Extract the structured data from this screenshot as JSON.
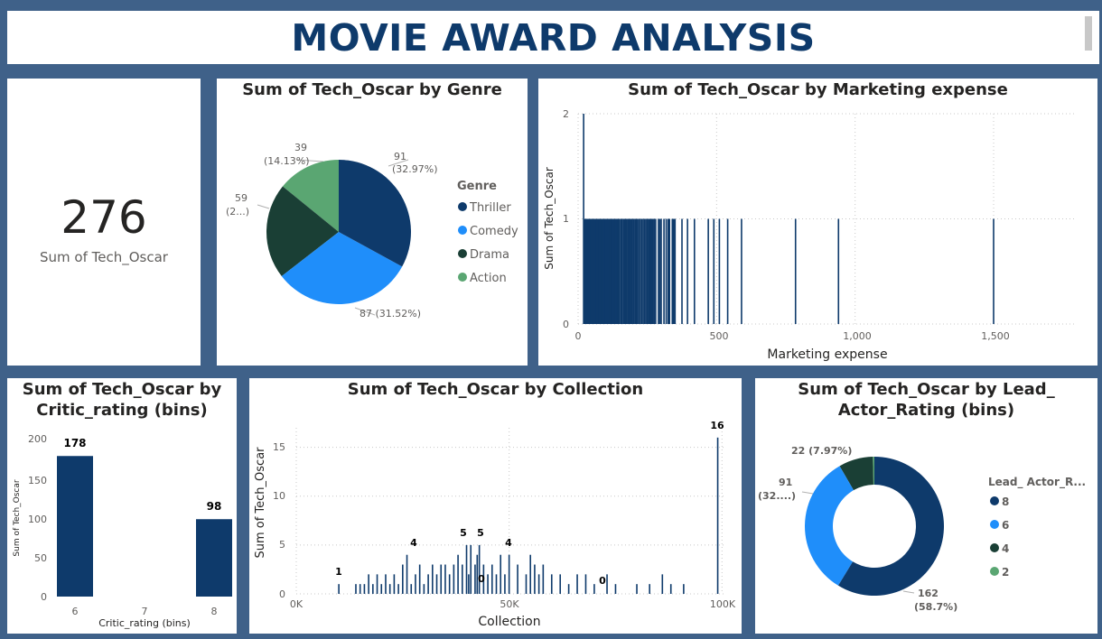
{
  "header": {
    "title": "MOVIE AWARD ANALYSIS"
  },
  "kpi": {
    "value": "276",
    "label": "Sum of Tech_Oscar"
  },
  "colors": {
    "background": "#3f6189",
    "dark_blue": "#0e3a6b",
    "light_blue": "#1f8efa",
    "dark_green": "#1a3f35",
    "light_green": "#5aa672",
    "title_blue": "#0e3a6b"
  },
  "genre_chart": {
    "title": "Sum of Tech_Oscar by Genre",
    "legend_title": "Genre",
    "legend": [
      "Thriller",
      "Comedy",
      "Drama",
      "Action"
    ],
    "labels": {
      "thriller_value": "91",
      "thriller_pct": "(32.97%)",
      "comedy": "87 (31.52%)",
      "drama_value": "59",
      "drama_pct": "(2...)",
      "action_value": "39",
      "action_pct": "(14.13%)"
    }
  },
  "marketing_chart": {
    "title": "Sum of Tech_Oscar by Marketing expense",
    "xlabel": "Marketing expense",
    "ylabel": "Sum of Tech_Oscar",
    "xticks": [
      "0",
      "500",
      "1,000",
      "1,500"
    ],
    "yticks": [
      "0",
      "1",
      "2"
    ]
  },
  "critic_chart": {
    "title_line1": "Sum of Tech_Oscar by",
    "title_line2": "Critic_rating (bins)",
    "xlabel": "Critic_rating (bins)",
    "ylabel": "Sum of Tech_Oscar",
    "xticks": [
      "6",
      "7",
      "8"
    ],
    "yticks": [
      "0",
      "50",
      "100",
      "150",
      "200"
    ],
    "data_labels": [
      "178",
      "98"
    ]
  },
  "collection_chart": {
    "title": "Sum of Tech_Oscar by Collection",
    "xlabel": "Collection",
    "ylabel": "Sum of Tech_Oscar",
    "xticks": [
      "0K",
      "50K",
      "100K"
    ],
    "yticks": [
      "0",
      "5",
      "10",
      "15"
    ],
    "data_labels": [
      "1",
      "4",
      "5",
      "5",
      "4",
      "0",
      "0",
      "16"
    ]
  },
  "lead_chart": {
    "title_line1": "Sum of Tech_Oscar by Lead_",
    "title_line2": "Actor_Rating (bins)",
    "legend_title": "Lead_ Actor_R...",
    "legend": [
      "8",
      "6",
      "4",
      "2"
    ],
    "labels": {
      "seg2": "22 (7.97%)",
      "seg6_value": "91",
      "seg6_pct": "(32....)",
      "seg8_value": "162",
      "seg8_pct": "(58.7%)"
    }
  },
  "chart_data": [
    {
      "type": "pie",
      "title": "Sum of Tech_Oscar by Genre",
      "categories": [
        "Thriller",
        "Comedy",
        "Drama",
        "Action"
      ],
      "values": [
        91,
        87,
        59,
        39
      ],
      "colors": [
        "#0e3a6b",
        "#1f8efa",
        "#1a3f35",
        "#5aa672"
      ]
    },
    {
      "type": "bar",
      "title": "Sum of Tech_Oscar by Marketing expense",
      "xlabel": "Marketing expense",
      "ylabel": "Sum of Tech_Oscar",
      "xlim": [
        0,
        1800
      ],
      "ylim": [
        0,
        2
      ],
      "x": [
        20,
        22,
        25,
        28,
        30,
        33,
        36,
        38,
        40,
        42,
        45,
        48,
        50,
        52,
        55,
        58,
        60,
        62,
        64,
        66,
        70,
        72,
        75,
        78,
        80,
        82,
        85,
        88,
        90,
        92,
        95,
        98,
        100,
        103,
        106,
        110,
        112,
        115,
        118,
        120,
        124,
        127,
        130,
        134,
        138,
        140,
        143,
        147,
        150,
        155,
        158,
        160,
        165,
        168,
        172,
        175,
        180,
        185,
        188,
        192,
        195,
        200,
        205,
        208,
        212,
        215,
        220,
        225,
        230,
        235,
        240,
        245,
        250,
        255,
        260,
        265,
        270,
        275,
        280,
        290,
        295,
        300,
        310,
        318,
        325,
        330,
        340,
        345,
        350,
        375,
        395,
        420,
        470,
        490,
        510,
        540,
        590,
        785,
        940,
        1500
      ],
      "values": [
        2,
        1,
        1,
        1,
        1,
        1,
        1,
        1,
        1,
        1,
        1,
        1,
        1,
        1,
        1,
        1,
        1,
        1,
        1,
        1,
        1,
        1,
        1,
        1,
        1,
        1,
        1,
        1,
        1,
        1,
        1,
        1,
        1,
        1,
        1,
        1,
        1,
        1,
        1,
        1,
        1,
        1,
        1,
        1,
        1,
        1,
        1,
        1,
        1,
        1,
        1,
        1,
        1,
        1,
        1,
        1,
        1,
        1,
        1,
        1,
        1,
        1,
        1,
        1,
        1,
        1,
        1,
        1,
        1,
        1,
        1,
        1,
        1,
        1,
        1,
        1,
        1,
        1,
        1,
        1,
        1,
        1,
        1,
        1,
        1,
        1,
        1,
        1,
        1,
        1,
        1,
        1,
        1,
        1,
        1,
        1,
        1,
        1,
        1,
        1
      ]
    },
    {
      "type": "bar",
      "title": "Sum of Tech_Oscar by Critic_rating (bins)",
      "xlabel": "Critic_rating (bins)",
      "ylabel": "Sum of Tech_Oscar",
      "categories": [
        "6",
        "7",
        "8"
      ],
      "values": [
        178,
        0,
        98
      ],
      "ylim": [
        0,
        200
      ]
    },
    {
      "type": "bar",
      "title": "Sum of Tech_Oscar by Collection",
      "xlabel": "Collection",
      "ylabel": "Sum of Tech_Oscar",
      "xlim": [
        0,
        101000
      ],
      "ylim": [
        0,
        17
      ],
      "x": [
        10000,
        14000,
        15000,
        16000,
        17000,
        18000,
        19000,
        20000,
        21000,
        22000,
        23000,
        24000,
        25000,
        26000,
        27000,
        28000,
        29000,
        30000,
        31000,
        32000,
        33000,
        34000,
        35000,
        36000,
        37000,
        38000,
        39000,
        40000,
        40500,
        41000,
        42000,
        42500,
        43000,
        44000,
        45000,
        46000,
        47000,
        48000,
        49000,
        50000,
        52000,
        54000,
        55000,
        56000,
        57000,
        58000,
        60000,
        62000,
        64000,
        66000,
        68000,
        70000,
        73000,
        75000,
        80000,
        83000,
        86000,
        88000,
        91000,
        99000
      ],
      "values": [
        1,
        1,
        1,
        1,
        2,
        1,
        2,
        1,
        2,
        1,
        2,
        1,
        3,
        4,
        1,
        2,
        3,
        1,
        2,
        3,
        2,
        3,
        3,
        2,
        3,
        4,
        3,
        5,
        2,
        5,
        3,
        4,
        5,
        3,
        2,
        3,
        2,
        4,
        2,
        4,
        3,
        2,
        4,
        3,
        2,
        3,
        2,
        2,
        1,
        2,
        2,
        1,
        2,
        1,
        1,
        1,
        2,
        1,
        1,
        16
      ]
    },
    {
      "type": "pie",
      "title": "Sum of Tech_Oscar by Lead_ Actor_Rating (bins)",
      "categories": [
        "8",
        "6",
        "4",
        "2"
      ],
      "values": [
        162,
        91,
        22,
        1
      ],
      "colors": [
        "#0e3a6b",
        "#1f8efa",
        "#1a3f35",
        "#5aa672"
      ]
    }
  ]
}
